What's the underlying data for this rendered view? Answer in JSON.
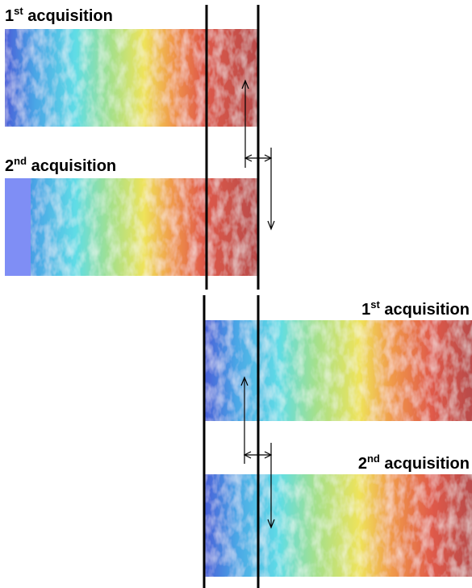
{
  "labels": [
    {
      "number": "1",
      "suffix": "st",
      "text": "acquisition"
    },
    {
      "number": "2",
      "suffix": "nd",
      "text": "acquisition"
    },
    {
      "number": "1",
      "suffix": "st",
      "text": "acquisition"
    },
    {
      "number": "2",
      "suffix": "nd",
      "text": "acquisition"
    }
  ]
}
